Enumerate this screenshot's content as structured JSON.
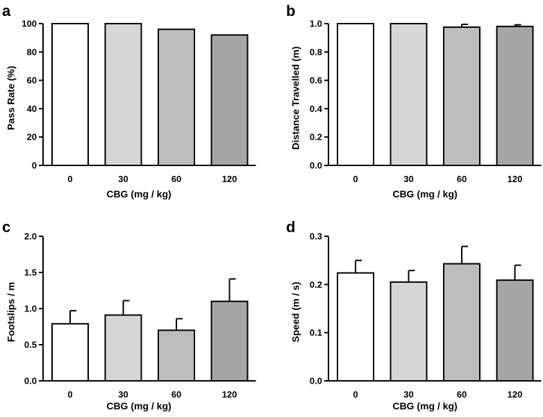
{
  "chart_data": [
    {
      "type": "bar",
      "panel": "a",
      "categories": [
        "0",
        "30",
        "60",
        "120"
      ],
      "values": [
        100,
        100,
        96,
        92
      ],
      "errors": [
        0,
        0,
        0,
        0
      ],
      "xlabel": "CBG (mg / kg)",
      "ylabel": "Pass Rate (%)",
      "ylim": [
        0,
        100
      ],
      "yticks": [
        0,
        20,
        40,
        60,
        80,
        100
      ],
      "ytick_labels": [
        "0",
        "20",
        "40",
        "60",
        "80",
        "100"
      ],
      "colors": [
        "#ffffff",
        "#d6d6d6",
        "#bdbdbd",
        "#a6a6a6"
      ]
    },
    {
      "type": "bar",
      "panel": "b",
      "categories": [
        "0",
        "30",
        "60",
        "120"
      ],
      "values": [
        1.0,
        1.0,
        0.975,
        0.98
      ],
      "errors": [
        0,
        0,
        0.02,
        0.012
      ],
      "xlabel": "CBG (mg / kg)",
      "ylabel": "Distance Travelled (m)",
      "ylim": [
        0,
        1.0
      ],
      "yticks": [
        0,
        0.2,
        0.4,
        0.6,
        0.8,
        1.0
      ],
      "ytick_labels": [
        "0.0",
        "0.2",
        "0.4",
        "0.6",
        "0.8",
        "1.0"
      ],
      "colors": [
        "#ffffff",
        "#d6d6d6",
        "#bdbdbd",
        "#a6a6a6"
      ]
    },
    {
      "type": "bar",
      "panel": "c",
      "categories": [
        "0",
        "30",
        "60",
        "120"
      ],
      "values": [
        0.79,
        0.91,
        0.7,
        1.1
      ],
      "errors": [
        0.18,
        0.2,
        0.16,
        0.31
      ],
      "xlabel": "CBG (mg / kg)",
      "ylabel": "Footslips / m",
      "ylim": [
        0,
        2.0
      ],
      "yticks": [
        0,
        0.5,
        1.0,
        1.5,
        2.0
      ],
      "ytick_labels": [
        "0.0",
        "0.5",
        "1.0",
        "1.5",
        "2.0"
      ],
      "colors": [
        "#ffffff",
        "#d6d6d6",
        "#bdbdbd",
        "#a6a6a6"
      ]
    },
    {
      "type": "bar",
      "panel": "d",
      "categories": [
        "0",
        "30",
        "60",
        "120"
      ],
      "values": [
        0.224,
        0.205,
        0.243,
        0.209
      ],
      "errors": [
        0.026,
        0.024,
        0.036,
        0.031
      ],
      "xlabel": "CBG (mg / kg)",
      "ylabel": "Speed (m / s)",
      "ylim": [
        0,
        0.3
      ],
      "yticks": [
        0,
        0.1,
        0.2,
        0.3
      ],
      "ytick_labels": [
        "0.0",
        "0.1",
        "0.2",
        "0.3"
      ],
      "colors": [
        "#ffffff",
        "#d6d6d6",
        "#bdbdbd",
        "#a6a6a6"
      ]
    }
  ]
}
